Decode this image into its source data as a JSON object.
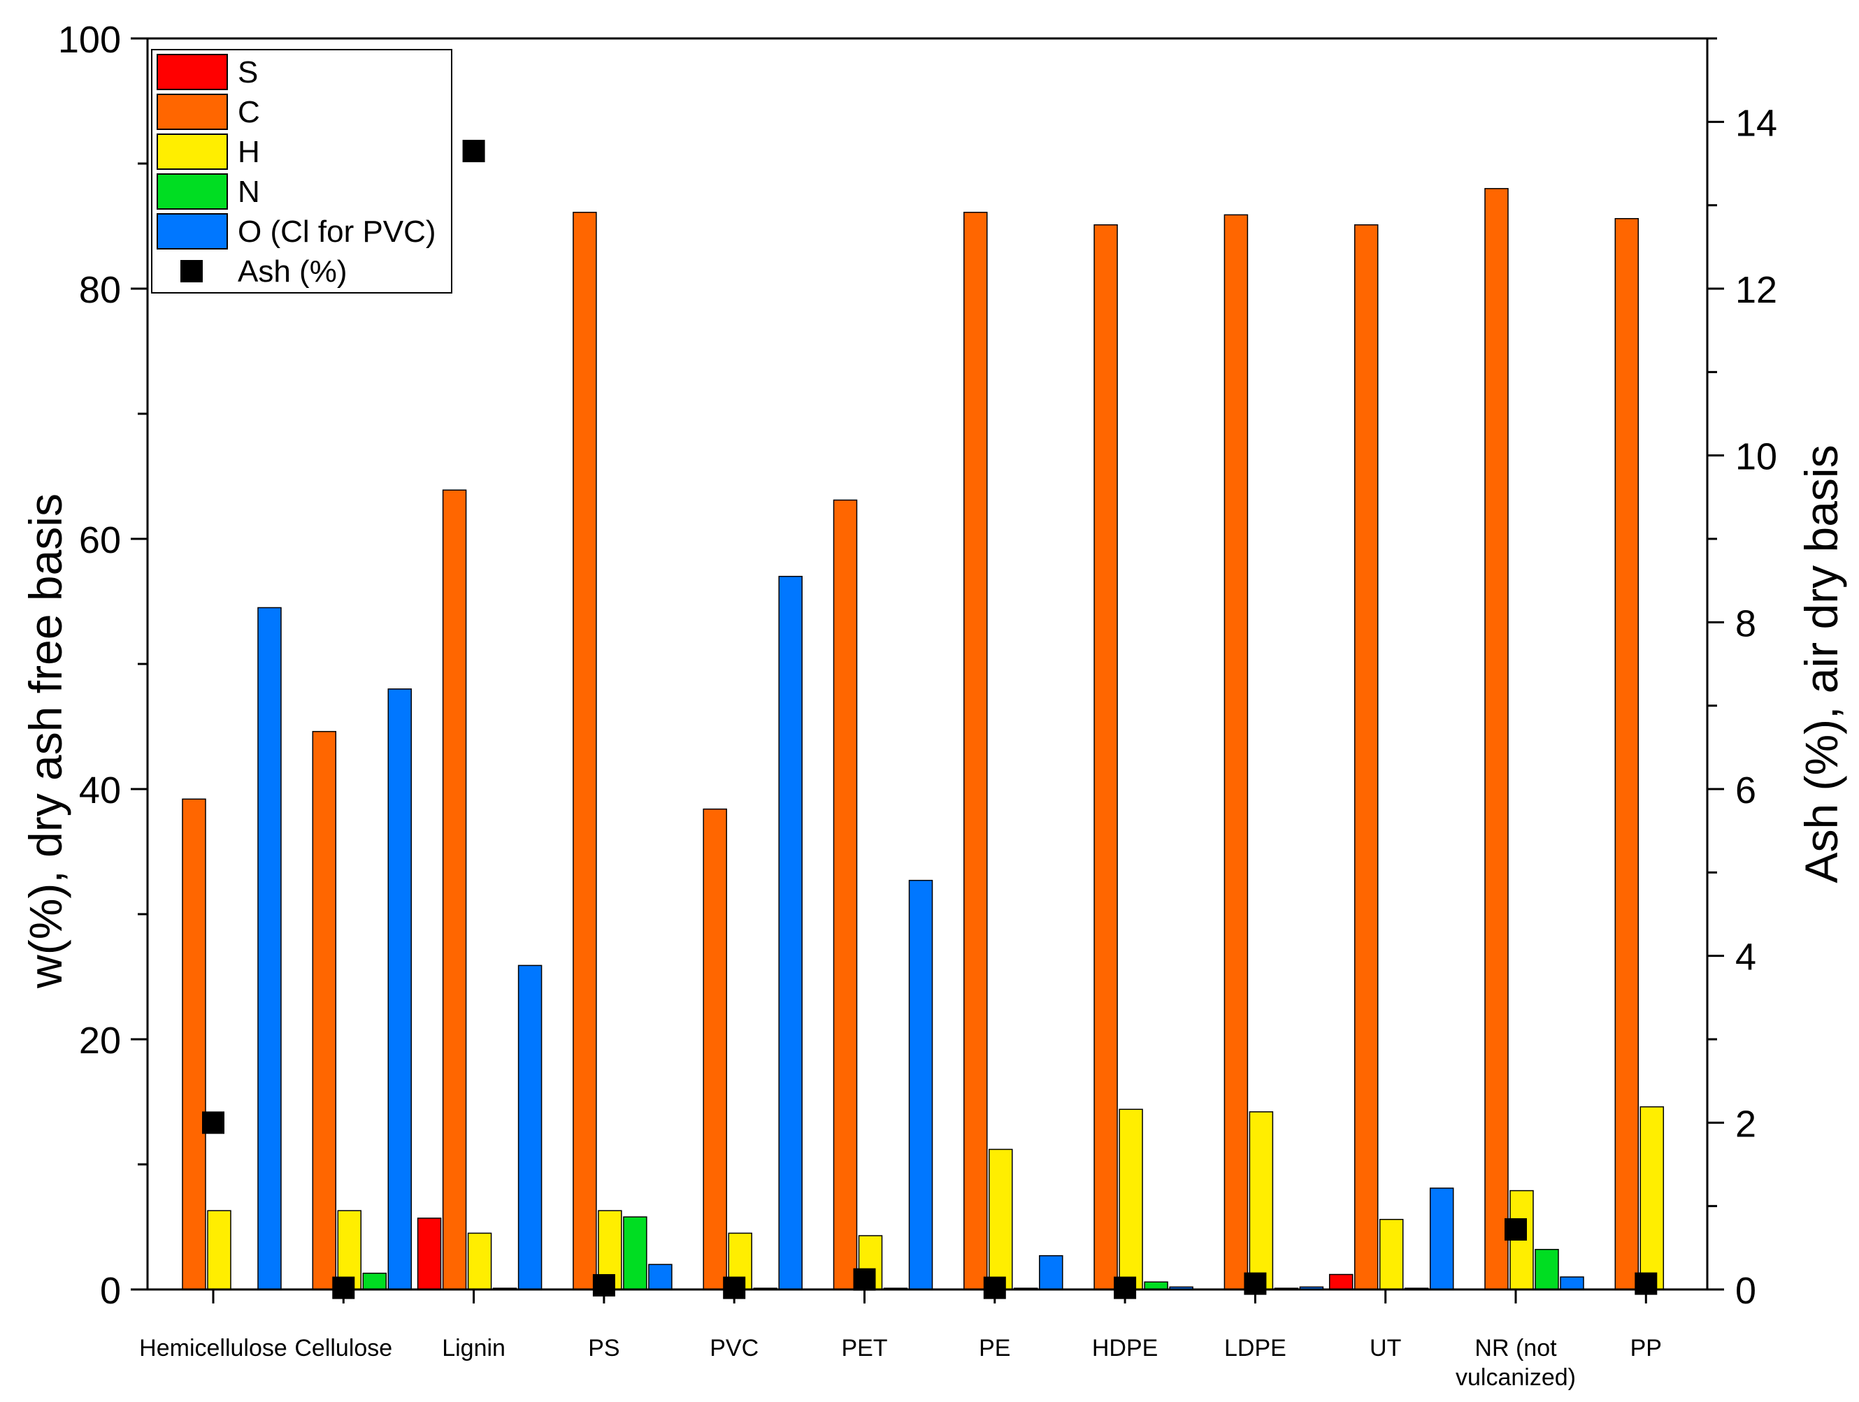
{
  "chart_data": {
    "type": "bar",
    "categories": [
      "Hemicellulose",
      "Cellulose",
      "Lignin",
      "PS",
      "PVC",
      "PET",
      "PE",
      "HDPE",
      "LDPE",
      "UT",
      "NR (not vulcanized)",
      "PP"
    ],
    "category_lines": [
      [
        "Hemicellulose"
      ],
      [
        "Cellulose"
      ],
      [
        "Lignin"
      ],
      [
        "PS"
      ],
      [
        "PVC"
      ],
      [
        "PET"
      ],
      [
        "PE"
      ],
      [
        "HDPE"
      ],
      [
        "LDPE"
      ],
      [
        "UT"
      ],
      [
        "NR (not",
        "vulcanized)"
      ],
      [
        "PP"
      ]
    ],
    "series": [
      {
        "name": "S",
        "color": "#ff0000",
        "axis": "left",
        "values": [
          0,
          0,
          5.7,
          0,
          0,
          0,
          0,
          0,
          0,
          1.2,
          0,
          0
        ]
      },
      {
        "name": "C",
        "color": "#ff6600",
        "axis": "left",
        "values": [
          39.2,
          44.6,
          63.9,
          86.1,
          38.4,
          63.1,
          86.1,
          85.1,
          85.9,
          85.1,
          88.0,
          85.6
        ]
      },
      {
        "name": "H",
        "color": "#ffee00",
        "axis": "left",
        "values": [
          6.3,
          6.3,
          4.5,
          6.3,
          4.5,
          4.3,
          11.2,
          14.4,
          14.2,
          5.6,
          7.9,
          14.6
        ]
      },
      {
        "name": "N",
        "color": "#00dd22",
        "axis": "left",
        "values": [
          0,
          1.3,
          0.1,
          5.8,
          0.1,
          0.1,
          0.1,
          0.6,
          0.1,
          0.1,
          3.2,
          0
        ]
      },
      {
        "name": "O (Cl for PVC)",
        "color": "#0077ff",
        "axis": "left",
        "values": [
          54.5,
          48.0,
          25.9,
          2.0,
          57.0,
          32.7,
          2.7,
          0.2,
          0.2,
          8.1,
          1.0,
          0
        ]
      },
      {
        "name": "Ash (%)",
        "type": "scatter",
        "marker": "square",
        "color": "#000000",
        "axis": "right",
        "values": [
          2.0,
          0.02,
          13.65,
          0.05,
          0.02,
          0.12,
          0.02,
          0.02,
          0.07,
          null,
          0.72,
          0.07
        ]
      }
    ],
    "ylabel": "w(%), dry ash free basis",
    "y2label": "Ash (%), air dry basis",
    "ylim": [
      0,
      100
    ],
    "y2lim": [
      0,
      15
    ],
    "yticks": [
      "0",
      "20",
      "40",
      "60",
      "80",
      "100"
    ],
    "y2ticks": [
      "0",
      "2",
      "4",
      "6",
      "8",
      "10",
      "12",
      "14"
    ],
    "legend_position": "top-left",
    "grid": false
  }
}
